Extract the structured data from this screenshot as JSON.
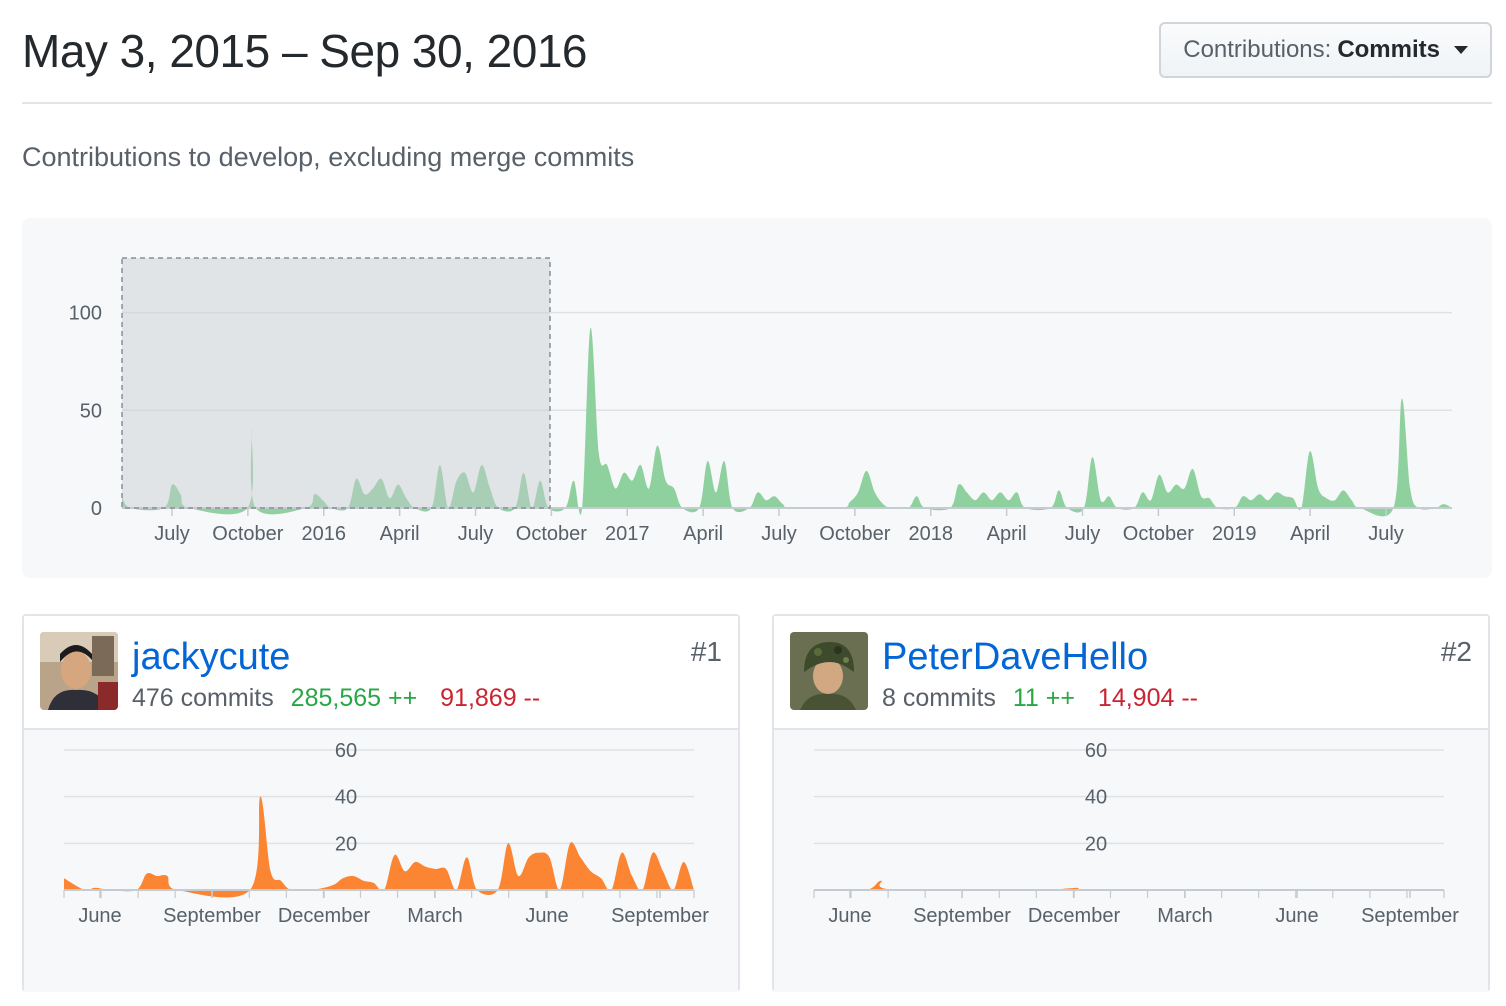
{
  "header": {
    "date_range": "May 3, 2015 – Sep 30, 2016",
    "contributions_prefix": "Contributions:",
    "contributions_value": "Commits"
  },
  "subtitle": "Contributions to develop, excluding merge commits",
  "colors": {
    "main_area": "#8fd19e",
    "contributor_area": "#fb8532",
    "link": "#0366d6",
    "additions": "#28a745",
    "deletions": "#cb2431"
  },
  "chart_data": [
    {
      "type": "area",
      "title": "",
      "x_ticks": [
        "July",
        "October",
        "2016",
        "April",
        "July",
        "October",
        "2017",
        "April",
        "July",
        "October",
        "2018",
        "April",
        "July",
        "October",
        "2019",
        "April",
        "July"
      ],
      "y_ticks": [
        "0",
        "50",
        "100"
      ],
      "ylim": [
        0,
        130
      ],
      "grid": true,
      "selection": {
        "from": "May 3, 2015",
        "to": "Sep 30, 2016"
      },
      "series": [
        {
          "points": [
            [
              0,
              6
            ],
            [
              2,
              0
            ],
            [
              10,
              0
            ],
            [
              12,
              12
            ],
            [
              14,
              7
            ],
            [
              16,
              0
            ],
            [
              30,
              0
            ],
            [
              31,
              40
            ],
            [
              32,
              0
            ],
            [
              44,
              0
            ],
            [
              46,
              7
            ],
            [
              48,
              4
            ],
            [
              50,
              0
            ],
            [
              54,
              0
            ],
            [
              56,
              15
            ],
            [
              58,
              7
            ],
            [
              60,
              10
            ],
            [
              62,
              15
            ],
            [
              64,
              5
            ],
            [
              66,
              12
            ],
            [
              68,
              5
            ],
            [
              70,
              0
            ],
            [
              74,
              0
            ],
            [
              76,
              22
            ],
            [
              78,
              0
            ],
            [
              80,
              14
            ],
            [
              82,
              18
            ],
            [
              84,
              8
            ],
            [
              86,
              22
            ],
            [
              88,
              10
            ],
            [
              90,
              0
            ],
            [
              94,
              0
            ],
            [
              96,
              18
            ],
            [
              98,
              0
            ],
            [
              100,
              14
            ],
            [
              102,
              0
            ],
            [
              106,
              0
            ],
            [
              108,
              14
            ],
            [
              110,
              0
            ],
            [
              112,
              92
            ],
            [
              114,
              28
            ],
            [
              116,
              22
            ],
            [
              118,
              10
            ],
            [
              120,
              18
            ],
            [
              122,
              14
            ],
            [
              124,
              22
            ],
            [
              126,
              10
            ],
            [
              128,
              32
            ],
            [
              130,
              14
            ],
            [
              132,
              10
            ],
            [
              134,
              0
            ],
            [
              138,
              0
            ],
            [
              140,
              24
            ],
            [
              142,
              8
            ],
            [
              144,
              24
            ],
            [
              146,
              0
            ],
            [
              150,
              0
            ],
            [
              152,
              8
            ],
            [
              154,
              4
            ],
            [
              156,
              6
            ],
            [
              158,
              2
            ],
            [
              160,
              0
            ],
            [
              172,
              0
            ],
            [
              174,
              3
            ],
            [
              176,
              8
            ],
            [
              178,
              19
            ],
            [
              180,
              8
            ],
            [
              182,
              2
            ],
            [
              184,
              0
            ],
            [
              188,
              0
            ],
            [
              190,
              6
            ],
            [
              192,
              0
            ],
            [
              198,
              0
            ],
            [
              200,
              12
            ],
            [
              202,
              8
            ],
            [
              204,
              4
            ],
            [
              206,
              8
            ],
            [
              208,
              4
            ],
            [
              210,
              8
            ],
            [
              212,
              4
            ],
            [
              214,
              8
            ],
            [
              216,
              0
            ],
            [
              222,
              0
            ],
            [
              224,
              9
            ],
            [
              226,
              0
            ],
            [
              230,
              0
            ],
            [
              232,
              26
            ],
            [
              234,
              4
            ],
            [
              236,
              6
            ],
            [
              238,
              0
            ],
            [
              242,
              0
            ],
            [
              244,
              8
            ],
            [
              246,
              4
            ],
            [
              248,
              17
            ],
            [
              250,
              8
            ],
            [
              252,
              12
            ],
            [
              254,
              10
            ],
            [
              256,
              20
            ],
            [
              258,
              6
            ],
            [
              260,
              5
            ],
            [
              262,
              0
            ],
            [
              266,
              0
            ],
            [
              268,
              6
            ],
            [
              270,
              4
            ],
            [
              272,
              7
            ],
            [
              274,
              4
            ],
            [
              276,
              8
            ],
            [
              278,
              6
            ],
            [
              280,
              5
            ],
            [
              282,
              0
            ],
            [
              284,
              29
            ],
            [
              286,
              10
            ],
            [
              288,
              5
            ],
            [
              290,
              4
            ],
            [
              292,
              9
            ],
            [
              294,
              4
            ],
            [
              296,
              0
            ],
            [
              304,
              0
            ],
            [
              306,
              56
            ],
            [
              308,
              10
            ],
            [
              310,
              0
            ],
            [
              314,
              0
            ],
            [
              316,
              2
            ],
            [
              318,
              0
            ]
          ]
        }
      ]
    },
    {
      "type": "area",
      "title": "",
      "x_ticks": [
        "June",
        "September",
        "December",
        "March",
        "June",
        "September"
      ],
      "y_ticks": [
        "20",
        "40",
        "60"
      ],
      "ylim": [
        0,
        60
      ],
      "grid": true,
      "series": [
        {
          "points": [
            [
              0,
              5
            ],
            [
              4,
              0
            ],
            [
              6,
              1
            ],
            [
              9,
              0
            ],
            [
              14,
              0
            ],
            [
              16,
              7
            ],
            [
              18,
              6
            ],
            [
              20,
              6
            ],
            [
              22,
              0
            ],
            [
              36,
              0
            ],
            [
              38,
              40
            ],
            [
              40,
              8
            ],
            [
              42,
              4
            ],
            [
              44,
              0
            ],
            [
              48,
              0
            ],
            [
              52,
              2
            ],
            [
              54,
              5
            ],
            [
              56,
              6
            ],
            [
              58,
              4
            ],
            [
              60,
              3
            ],
            [
              62,
              0
            ],
            [
              64,
              15
            ],
            [
              66,
              8
            ],
            [
              68,
              12
            ],
            [
              70,
              10
            ],
            [
              72,
              9
            ],
            [
              74,
              9
            ],
            [
              76,
              0
            ],
            [
              78,
              14
            ],
            [
              80,
              0
            ],
            [
              84,
              0
            ],
            [
              86,
              20
            ],
            [
              88,
              6
            ],
            [
              90,
              14
            ],
            [
              92,
              16
            ],
            [
              94,
              14
            ],
            [
              96,
              0
            ],
            [
              98,
              20
            ],
            [
              100,
              14
            ],
            [
              102,
              8
            ],
            [
              104,
              5
            ],
            [
              106,
              0
            ],
            [
              108,
              16
            ],
            [
              110,
              6
            ],
            [
              112,
              0
            ],
            [
              114,
              16
            ],
            [
              116,
              8
            ],
            [
              118,
              0
            ],
            [
              120,
              12
            ],
            [
              122,
              0
            ]
          ]
        }
      ]
    },
    {
      "type": "area",
      "title": "",
      "x_ticks": [
        "June",
        "September",
        "December",
        "March",
        "June",
        "September"
      ],
      "y_ticks": [
        "20",
        "40",
        "60"
      ],
      "ylim": [
        0,
        60
      ],
      "grid": true,
      "series": [
        {
          "points": [
            [
              0,
              0
            ],
            [
              10,
              0
            ],
            [
              13,
              4
            ],
            [
              16,
              0
            ],
            [
              48,
              0
            ],
            [
              51,
              1
            ],
            [
              54,
              0
            ],
            [
              122,
              0
            ]
          ]
        }
      ]
    }
  ],
  "contributors": [
    {
      "rank": "#1",
      "username": "jackycute",
      "commits": "476 commits",
      "additions": "285,565 ++",
      "deletions": "91,869 --"
    },
    {
      "rank": "#2",
      "username": "PeterDaveHello",
      "commits": "8 commits",
      "additions": "11 ++",
      "deletions": "14,904 --"
    }
  ]
}
